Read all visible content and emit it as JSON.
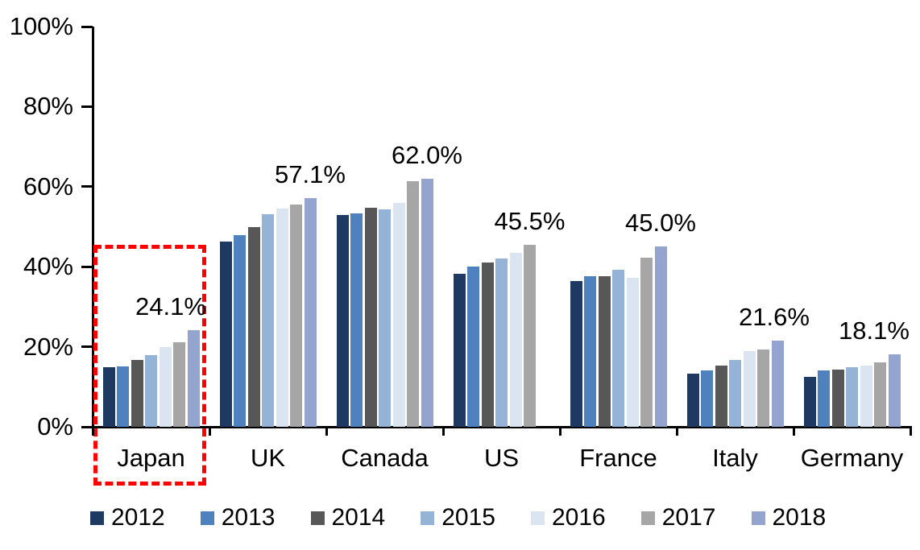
{
  "chart_data": {
    "type": "bar",
    "title": "",
    "xlabel": "",
    "ylabel": "",
    "ylim": [
      0,
      100
    ],
    "grid": false,
    "legend_position": "bottom",
    "yticks": [
      {
        "value": 0,
        "label": "0%"
      },
      {
        "value": 20,
        "label": "20%"
      },
      {
        "value": 40,
        "label": "40%"
      },
      {
        "value": 60,
        "label": "60%"
      },
      {
        "value": 80,
        "label": "80%"
      },
      {
        "value": 100,
        "label": "100%"
      }
    ],
    "categories": [
      "Japan",
      "UK",
      "Canada",
      "US",
      "France",
      "Italy",
      "Germany"
    ],
    "series": [
      {
        "name": "2012",
        "color": "#1E3A63",
        "values": [
          14.8,
          46.2,
          52.9,
          38.2,
          36.5,
          13.2,
          12.5
        ]
      },
      {
        "name": "2013",
        "color": "#4E81BD",
        "values": [
          15.0,
          47.8,
          53.3,
          40.0,
          37.7,
          14.0,
          14.0
        ]
      },
      {
        "name": "2014",
        "color": "#575757",
        "values": [
          16.6,
          49.9,
          54.8,
          41.0,
          37.7,
          15.2,
          14.3
        ]
      },
      {
        "name": "2015",
        "color": "#95B3D7",
        "values": [
          18.0,
          53.2,
          54.4,
          42.0,
          39.3,
          16.7,
          14.8
        ]
      },
      {
        "name": "2016",
        "color": "#DBE5F1",
        "values": [
          20.0,
          54.5,
          56.0,
          43.5,
          37.3,
          18.9,
          15.3
        ]
      },
      {
        "name": "2017",
        "color": "#A6A6A6",
        "values": [
          21.1,
          55.6,
          61.4,
          45.5,
          42.3,
          19.3,
          16.0
        ]
      },
      {
        "name": "2018",
        "color": "#93A4CE",
        "values": [
          24.1,
          57.1,
          62.0,
          null,
          45.0,
          21.6,
          18.1
        ]
      }
    ],
    "data_labels": [
      {
        "category": "Japan",
        "text": "24.1%",
        "dx": -28
      },
      {
        "category": "UK",
        "text": "57.1%",
        "dx": 0
      },
      {
        "category": "Canada",
        "text": "62.0%",
        "dx": 0
      },
      {
        "category": "US",
        "text": "45.5%",
        "dx": 0
      },
      {
        "category": "France",
        "text": "45.0%",
        "dx": 0
      },
      {
        "category": "Italy",
        "text": "21.6%",
        "dx": -4
      },
      {
        "category": "Germany",
        "text": "18.1%",
        "dx": -25
      }
    ],
    "highlight": {
      "category": "Japan",
      "style": "dashed-box",
      "color": "#FF0000"
    }
  }
}
